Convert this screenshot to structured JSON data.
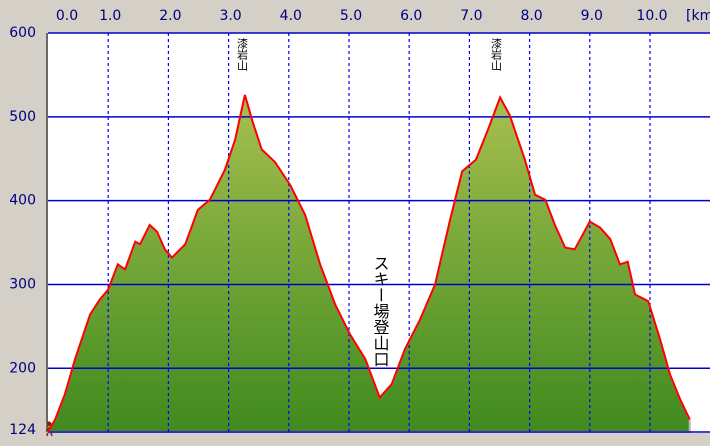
{
  "chart_data": {
    "type": "area",
    "x_label": "[km]",
    "x": [
      0,
      0.12,
      0.28,
      0.45,
      0.7,
      0.86,
      1.0,
      1.16,
      1.28,
      1.45,
      1.53,
      1.69,
      1.81,
      1.94,
      2.06,
      2.28,
      2.49,
      2.69,
      2.94,
      3.11,
      3.27,
      3.39,
      3.55,
      3.77,
      4.02,
      4.27,
      4.52,
      4.77,
      5.02,
      5.27,
      5.51,
      5.71,
      5.93,
      6.18,
      6.43,
      6.68,
      6.88,
      7.11,
      7.31,
      7.51,
      7.67,
      7.92,
      8.09,
      8.26,
      8.42,
      8.59,
      8.75,
      9.0,
      9.17,
      9.34,
      9.5,
      9.63,
      9.75,
      9.97,
      10.17,
      10.33,
      10.5,
      10.66
    ],
    "values": [
      124,
      139,
      169,
      211,
      264,
      282,
      294,
      324,
      318,
      351,
      348,
      371,
      363,
      342,
      332,
      348,
      389,
      401,
      437,
      473,
      526,
      496,
      461,
      446,
      419,
      383,
      324,
      276,
      240,
      211,
      165,
      181,
      223,
      258,
      300,
      377,
      435,
      449,
      485,
      523,
      502,
      449,
      407,
      401,
      371,
      344,
      342,
      375,
      368,
      354,
      324,
      327,
      288,
      280,
      234,
      193,
      163,
      139
    ],
    "line_color": "#ff0000",
    "xlim": [
      0,
      11
    ],
    "ylim": [
      124,
      600
    ],
    "xticks": [
      {
        "value": 0,
        "label": "0.0"
      },
      {
        "value": 1,
        "label": "1.0"
      },
      {
        "value": 2,
        "label": "2.0"
      },
      {
        "value": 3,
        "label": "3.0"
      },
      {
        "value": 4,
        "label": "4.0"
      },
      {
        "value": 5,
        "label": "5.0"
      },
      {
        "value": 6,
        "label": "6.0"
      },
      {
        "value": 7,
        "label": "7.0"
      },
      {
        "value": 8,
        "label": "8.0"
      },
      {
        "value": 9,
        "label": "9.0"
      },
      {
        "value": 10,
        "label": "10.0"
      }
    ],
    "yticks": [
      124,
      200,
      300,
      400,
      500,
      600
    ],
    "grid": true,
    "annotations": [
      "漆岩山",
      "スキー場登山口",
      "漆岩山"
    ]
  }
}
